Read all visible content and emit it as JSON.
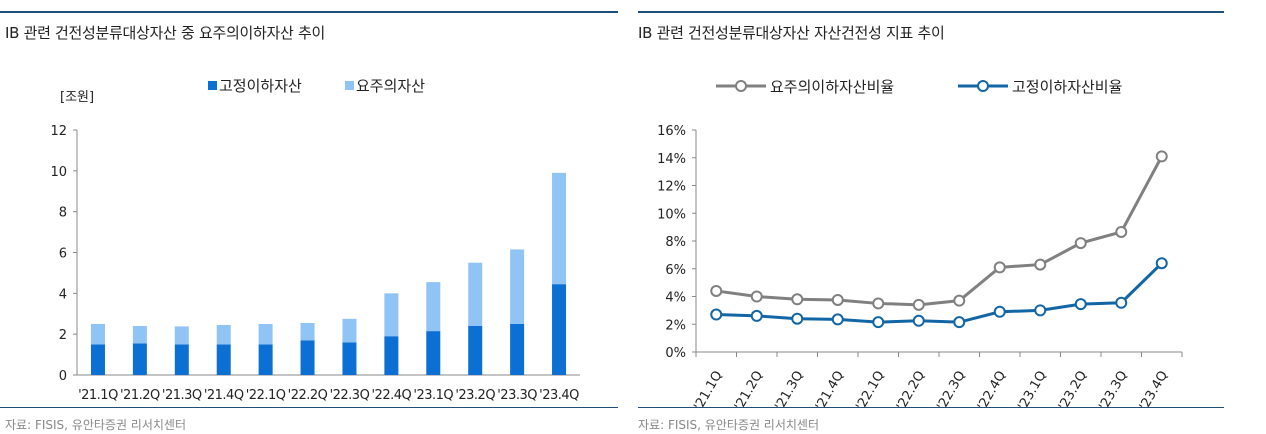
{
  "chart_data": [
    {
      "type": "bar",
      "stacked": true,
      "title": "IB 관련 건전성분류대상자산 중 요주의이하자산 추이",
      "unit_label": "[조원]",
      "categories": [
        "'21.1Q",
        "'21.2Q",
        "'21.3Q",
        "'21.4Q",
        "'22.1Q",
        "'22.2Q",
        "'22.3Q",
        "'22.4Q",
        "'23.1Q",
        "'23.2Q",
        "'23.3Q",
        "'23.4Q"
      ],
      "series": [
        {
          "name": "고정이하자산",
          "color": "#0b6fd3",
          "values": [
            1.5,
            1.55,
            1.5,
            1.5,
            1.5,
            1.7,
            1.6,
            1.9,
            2.15,
            2.4,
            2.5,
            4.45
          ]
        },
        {
          "name": "요주의자산",
          "color": "#8fc4f4",
          "values": [
            1.0,
            0.85,
            0.88,
            0.95,
            1.0,
            0.85,
            1.15,
            2.1,
            2.4,
            3.1,
            3.65,
            5.45
          ]
        }
      ],
      "ylim": [
        0,
        12
      ],
      "yticks": [
        0,
        2,
        4,
        6,
        8,
        10,
        12
      ],
      "source": "자료: FISIS, 유안타증권 리서치센터"
    },
    {
      "type": "line",
      "title": "IB 관련 건전성분류대상자산 자산건전성 지표 추이",
      "categories": [
        "'21.1Q",
        "'21.2Q",
        "'21.3Q",
        "'21.4Q",
        "'22.1Q",
        "'22.2Q",
        "'22.3Q",
        "'22.4Q",
        "'23.1Q",
        "'23.2Q",
        "'23.3Q",
        "'23.4Q"
      ],
      "series": [
        {
          "name": "요주의이하자산비율",
          "color": "#808080",
          "values": [
            4.4,
            4.0,
            3.8,
            3.75,
            3.5,
            3.4,
            3.7,
            6.1,
            6.3,
            7.85,
            8.65,
            14.1
          ]
        },
        {
          "name": "고정이하자산비율",
          "color": "#1266a6",
          "values": [
            2.7,
            2.6,
            2.4,
            2.35,
            2.15,
            2.25,
            2.15,
            2.9,
            3.0,
            3.45,
            3.55,
            6.4
          ]
        }
      ],
      "ylim": [
        0,
        16
      ],
      "yticks": [
        0,
        2,
        4,
        6,
        8,
        10,
        12,
        14,
        16
      ],
      "ytick_labels": [
        "0%",
        "2%",
        "4%",
        "6%",
        "8%",
        "10%",
        "12%",
        "14%",
        "16%"
      ],
      "source": "자료: FISIS, 유안타증권 리서치센터"
    }
  ]
}
